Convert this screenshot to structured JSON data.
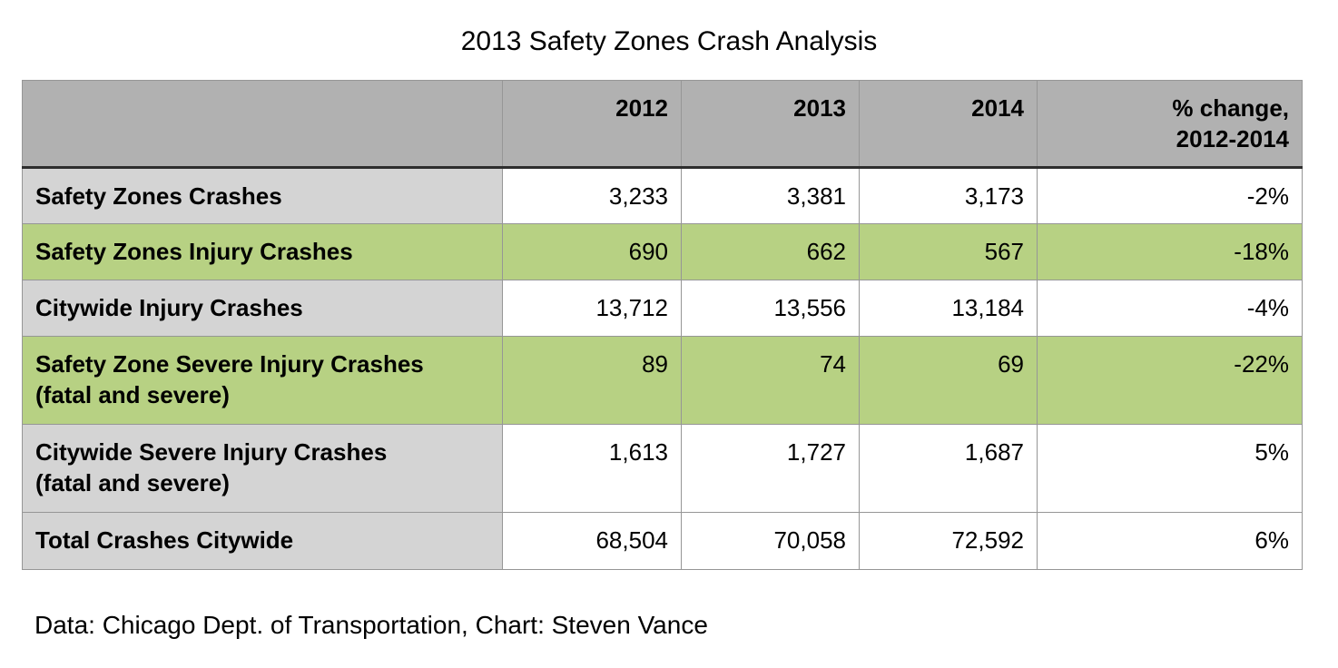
{
  "page": {
    "title": "2013 Safety Zones Crash Analysis",
    "caption": "Data: Chicago Dept. of Transportation, Chart: Steven Vance"
  },
  "table": {
    "header": {
      "corner": "",
      "years": [
        "2012",
        "2013",
        "2014"
      ],
      "pct_line1": "% change,",
      "pct_line2": "2012-2014"
    },
    "rows": [
      {
        "label": "Safety Zones Crashes",
        "sublabel": "",
        "v2012": "3,233",
        "v2013": "3,381",
        "v2014": "3,173",
        "pct": "-2%"
      },
      {
        "label": "Safety Zones Injury Crashes",
        "sublabel": "",
        "v2012": "690",
        "v2013": "662",
        "v2014": "567",
        "pct": "-18%"
      },
      {
        "label": "Citywide Injury Crashes",
        "sublabel": "",
        "v2012": "13,712",
        "v2013": "13,556",
        "v2014": "13,184",
        "pct": "-4%"
      },
      {
        "label": "Safety Zone Severe Injury Crashes",
        "sublabel": "(fatal and severe)",
        "v2012": "89",
        "v2013": "74",
        "v2014": "69",
        "pct": "-22%"
      },
      {
        "label": "Citywide Severe Injury Crashes",
        "sublabel": "(fatal and severe)",
        "v2012": "1,613",
        "v2013": "1,727",
        "v2014": "1,687",
        "pct": "5%"
      },
      {
        "label": "Total Crashes Citywide",
        "sublabel": "",
        "v2012": "68,504",
        "v2013": "70,058",
        "v2014": "72,592",
        "pct": "6%"
      }
    ]
  },
  "colors": {
    "header_bg": "#b1b1b1",
    "label_bg": "#d4d4d4",
    "highlight_green": "#b7d183",
    "thin_border": "#969696",
    "thick_border": "#2e2e2e",
    "text": "#000000",
    "background": "#ffffff"
  },
  "chart_data": {
    "type": "table",
    "title": "2013 Safety Zones Crash Analysis",
    "columns": [
      "2012",
      "2013",
      "2014",
      "% change, 2012-2014"
    ],
    "rows": [
      {
        "label": "Safety Zones Crashes",
        "values": [
          3233,
          3381,
          3173
        ],
        "pct_change_2012_2014": "-2%"
      },
      {
        "label": "Safety Zones Injury Crashes",
        "values": [
          690,
          662,
          567
        ],
        "pct_change_2012_2014": "-18%"
      },
      {
        "label": "Citywide Injury Crashes",
        "values": [
          13712,
          13556,
          13184
        ],
        "pct_change_2012_2014": "-4%"
      },
      {
        "label": "Safety Zone Severe Injury Crashes (fatal and severe)",
        "values": [
          89,
          74,
          69
        ],
        "pct_change_2012_2014": "-22%"
      },
      {
        "label": "Citywide Severe Injury Crashes (fatal and severe)",
        "values": [
          1613,
          1727,
          1687
        ],
        "pct_change_2012_2014": "5%"
      },
      {
        "label": "Total Crashes Citywide",
        "values": [
          68504,
          70058,
          72592
        ],
        "pct_change_2012_2014": "6%"
      }
    ],
    "highlighted_row_indices": [
      1,
      3
    ],
    "highlight_color": "#b7d183",
    "caption": "Data: Chicago Dept. of Transportation, Chart: Steven Vance"
  }
}
